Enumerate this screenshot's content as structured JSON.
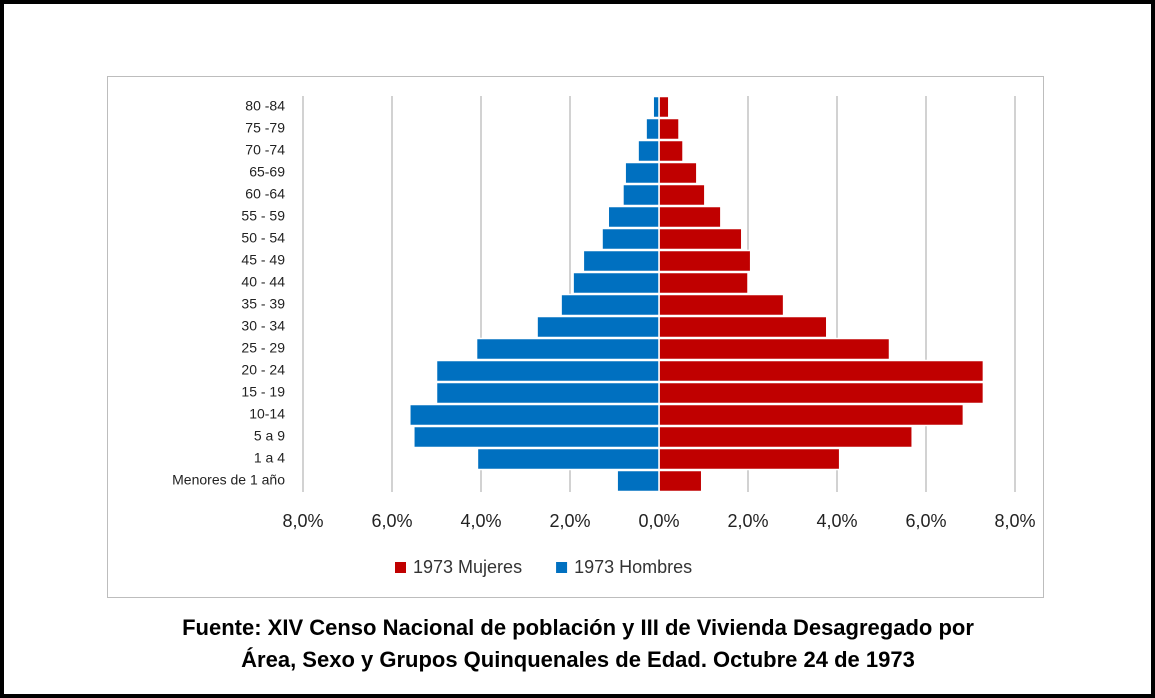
{
  "chart_data": {
    "type": "pyramid",
    "categories": [
      "80 -84",
      "75 -79",
      "70 -74",
      "65-69",
      "60 -64",
      "55 - 59",
      "50 - 54",
      "45 - 49",
      "40 - 44",
      "35 - 39",
      "30 - 34",
      "25 - 29",
      "20 - 24",
      "15 - 19",
      "10-14",
      "5 a 9",
      "1 a 4",
      "Menores de 1 año"
    ],
    "series": [
      {
        "name": "1973 Mujeres",
        "color": "#c00000",
        "values": [
          0.22,
          0.45,
          0.54,
          0.85,
          1.03,
          1.39,
          1.86,
          2.06,
          2.0,
          2.8,
          3.77,
          5.18,
          7.29,
          7.29,
          6.84,
          5.69,
          4.06,
          0.96
        ]
      },
      {
        "name": "1973 Hombres",
        "color": "#0070c0",
        "values": [
          -0.13,
          -0.29,
          -0.47,
          -0.76,
          -0.81,
          -1.14,
          -1.28,
          -1.7,
          -1.93,
          -2.2,
          -2.74,
          -4.1,
          -5.0,
          -5.0,
          -5.6,
          -5.51,
          -4.08,
          -0.94
        ]
      }
    ],
    "xlim": [
      -8,
      8
    ],
    "xticks": [
      {
        "value": -8,
        "label": "8,0%"
      },
      {
        "value": -6,
        "label": "6,0%"
      },
      {
        "value": -4,
        "label": "4,0%"
      },
      {
        "value": -2,
        "label": "2,0%"
      },
      {
        "value": 0,
        "label": "0,0%"
      },
      {
        "value": 2,
        "label": "2,0%"
      },
      {
        "value": 4,
        "label": "4,0%"
      },
      {
        "value": 6,
        "label": "6,0%"
      },
      {
        "value": 8,
        "label": "8,0%"
      }
    ],
    "grid": true,
    "legend": "bottom",
    "source_lines": [
      "Fuente: XIV Censo Nacional de población y III de Vivienda Desagregado por",
      "Área, Sexo y Grupos Quinquenales de Edad. Octubre 24 de 1973"
    ]
  }
}
